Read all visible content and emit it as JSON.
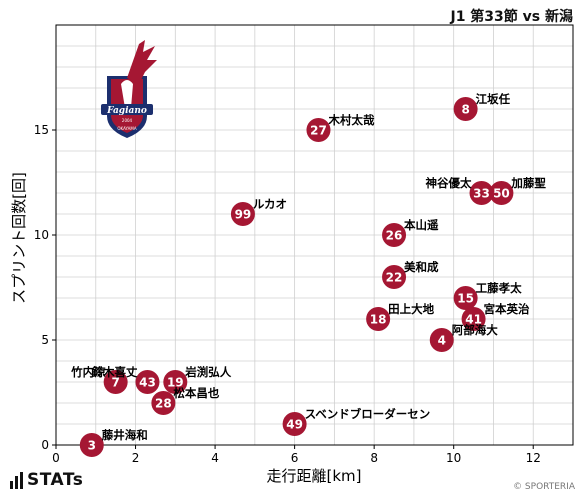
{
  "title": "J1 第33節 vs 新潟",
  "branding": {
    "stats_label": "STATs",
    "credit": "© SPORTERIA"
  },
  "team_logo": {
    "name": "Fagiano",
    "sub": "OKAYAMA",
    "year": "2004",
    "colors": {
      "main": "#a51733",
      "navy": "#1c2f6e"
    }
  },
  "colors": {
    "marker": "#a51733",
    "marker_text": "#ffffff",
    "grid": "#d0d0d0",
    "axis": "#000000"
  },
  "chart_data": {
    "type": "scatter",
    "xlabel": "走行距離[km]",
    "ylabel": "スプリント回数[回]",
    "xlim": [
      0,
      13
    ],
    "ylim": [
      0,
      20
    ],
    "xticks": [
      0,
      2,
      4,
      6,
      8,
      10,
      12
    ],
    "yticks": [
      0,
      5,
      10,
      15
    ],
    "grid": true,
    "points": [
      {
        "number": "8",
        "name": "江坂任",
        "x": 10.3,
        "y": 16,
        "label_side": "right"
      },
      {
        "number": "27",
        "name": "木村太哉",
        "x": 6.6,
        "y": 15,
        "label_side": "right"
      },
      {
        "number": "33",
        "name": "神谷優太",
        "x": 10.7,
        "y": 12,
        "label_side": "left"
      },
      {
        "number": "50",
        "name": "加藤聖",
        "x": 11.2,
        "y": 12,
        "label_side": "right"
      },
      {
        "number": "99",
        "name": "ルカオ",
        "x": 4.7,
        "y": 11,
        "label_side": "right"
      },
      {
        "number": "26",
        "name": "本山遥",
        "x": 8.5,
        "y": 10,
        "label_side": "right"
      },
      {
        "number": "22",
        "name": "美和成",
        "x": 8.5,
        "y": 8,
        "label_side": "right"
      },
      {
        "number": "15",
        "name": "工藤孝太",
        "x": 10.3,
        "y": 7,
        "label_side": "right"
      },
      {
        "number": "41",
        "name": "宮本英治",
        "x": 10.5,
        "y": 6,
        "label_side": "right"
      },
      {
        "number": "18",
        "name": "田上大地",
        "x": 8.1,
        "y": 6,
        "label_side": "right"
      },
      {
        "number": "4",
        "name": "阿部海大",
        "x": 9.7,
        "y": 5,
        "label_side": "right"
      },
      {
        "number": "7",
        "name": "竹内涼",
        "x": 1.5,
        "y": 3,
        "label_side": "left"
      },
      {
        "number": "43",
        "name": "鈴木喜丈",
        "x": 2.3,
        "y": 3,
        "label_side": "left"
      },
      {
        "number": "19",
        "name": "岩渕弘人",
        "x": 3.0,
        "y": 3,
        "label_side": "right"
      },
      {
        "number": "28",
        "name": "松本昌也",
        "x": 2.7,
        "y": 2,
        "label_side": "right"
      },
      {
        "number": "49",
        "name": "スベンドブローダーセン",
        "x": 6.0,
        "y": 1,
        "label_side": "right"
      },
      {
        "number": "3",
        "name": "藤井海和",
        "x": 0.9,
        "y": 0,
        "label_side": "right"
      }
    ]
  }
}
